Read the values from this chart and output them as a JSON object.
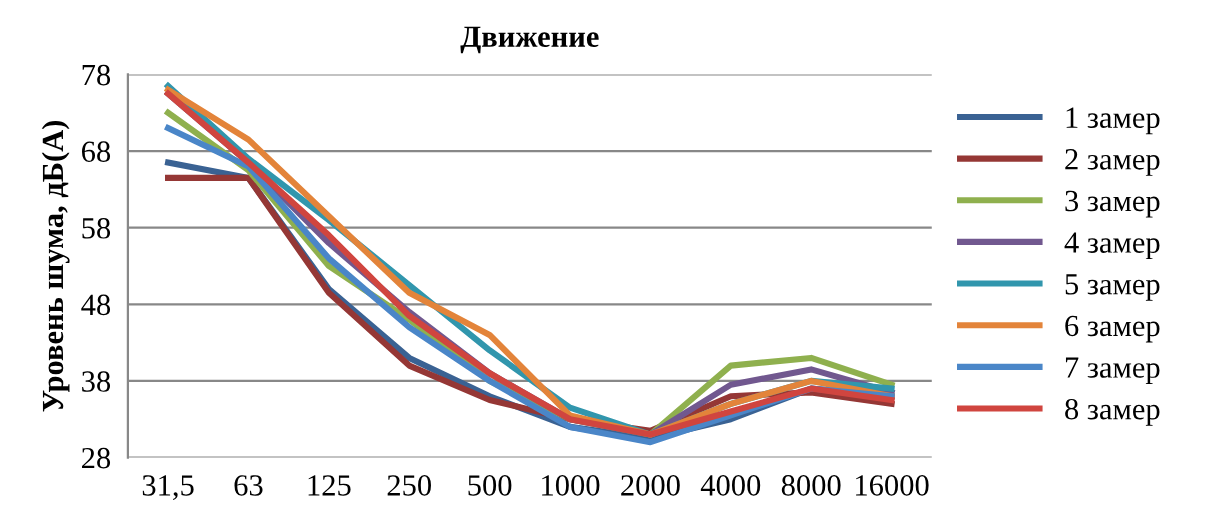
{
  "chart_data": {
    "type": "line",
    "title": "Движение",
    "ylabel": "Уровень шума, дБ(А)",
    "categories": [
      "31,5",
      "63",
      "125",
      "250",
      "500",
      "1000",
      "2000",
      "4000",
      "8000",
      "16000"
    ],
    "ylim": [
      28,
      78
    ],
    "yticks": [
      28,
      38,
      48,
      58,
      68,
      78
    ],
    "grid": "y",
    "legend": "right",
    "marker": "none",
    "line_style": "solid",
    "series": [
      {
        "name": "1 замер",
        "color": "#3a6293",
        "values": [
          66.5,
          64.5,
          50,
          41,
          36,
          32,
          30.5,
          33,
          37,
          36
        ]
      },
      {
        "name": "2 замер",
        "color": "#953735",
        "values": [
          64.5,
          64.5,
          49.5,
          40,
          35.5,
          33,
          31.5,
          36,
          36.5,
          35
        ]
      },
      {
        "name": "3 замер",
        "color": "#8fb04e",
        "values": [
          73,
          65.5,
          53,
          46,
          38,
          33,
          31,
          40,
          41,
          37.5
        ]
      },
      {
        "name": "4 замер",
        "color": "#71588f",
        "values": [
          75.5,
          66.5,
          56,
          47,
          39,
          33,
          31,
          37.5,
          39.5,
          36.5
        ]
      },
      {
        "name": "5 замер",
        "color": "#3196ad",
        "values": [
          76.5,
          67,
          59,
          50.5,
          42,
          34.5,
          31,
          35,
          38,
          37
        ]
      },
      {
        "name": "6 замер",
        "color": "#e3843a",
        "values": [
          76,
          69.5,
          59.5,
          49.5,
          44,
          33.5,
          31,
          35,
          38,
          36
        ]
      },
      {
        "name": "7 замер",
        "color": "#4a86c8",
        "values": [
          71,
          66,
          54,
          45,
          38,
          32,
          30,
          33.5,
          37,
          36
        ]
      },
      {
        "name": "8 замер",
        "color": "#d0453f",
        "values": [
          75.5,
          66.5,
          57,
          46.5,
          39,
          33,
          31,
          34,
          37,
          35.5
        ]
      }
    ]
  }
}
